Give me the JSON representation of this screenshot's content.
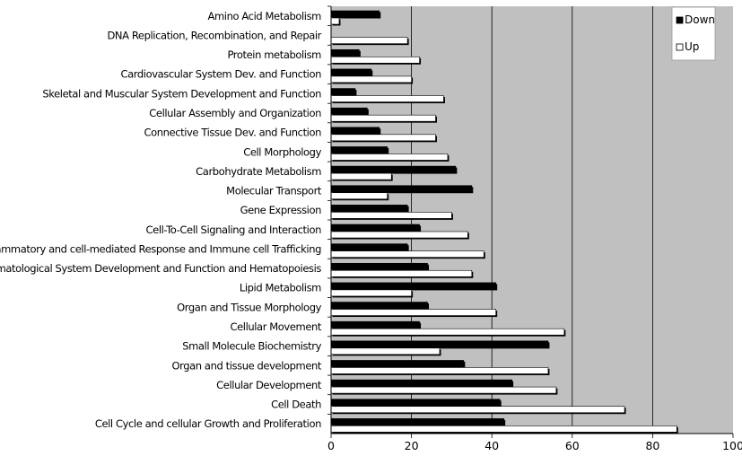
{
  "chart_data": {
    "type": "bar",
    "orientation": "horizontal",
    "categories": [
      "Amino Acid Metabolism",
      "DNA Replication, Recombination, and Repair",
      "Protein metabolism",
      "Cardiovascular System Dev. and Function",
      "Skeletal and Muscular System Development and Function",
      "Cellular Assembly and Organization",
      "Connective Tissue Dev. and Function",
      "Cell Morphology",
      "Carbohydrate Metabolism",
      "Molecular Transport",
      "Gene Expression",
      "Cell-To-Cell Signaling and Interaction",
      "Inflammatory and cell-mediated Response and Immune cell Trafficking",
      "Hematological System Development and Function and Hematopoiesis",
      "Lipid Metabolism",
      "Organ and Tissue Morphology",
      "Cellular Movement",
      "Small Molecule Biochemistry",
      "Organ and tissue development",
      "Cellular Development",
      "Cell Death",
      "Cell Cycle and cellular Growth and Proliferation"
    ],
    "series": [
      {
        "name": "Down",
        "color": "#000000",
        "values": [
          12,
          0,
          7,
          10,
          6,
          9,
          12,
          14,
          31,
          35,
          19,
          22,
          19,
          24,
          41,
          24,
          22,
          54,
          33,
          45,
          42,
          43
        ]
      },
      {
        "name": "Up",
        "color": "#ffffff",
        "values": [
          2,
          19,
          22,
          20,
          28,
          26,
          26,
          29,
          15,
          14,
          30,
          34,
          38,
          35,
          20,
          41,
          58,
          27,
          54,
          56,
          73,
          86
        ]
      }
    ],
    "xlim": [
      0,
      100
    ],
    "xticks": [
      "0",
      "20",
      "40",
      "60",
      "80",
      "100"
    ],
    "grid": "vertical",
    "legend": "top-right",
    "plot_background": "#c0c0c0",
    "title": "",
    "xlabel": "",
    "ylabel": ""
  }
}
